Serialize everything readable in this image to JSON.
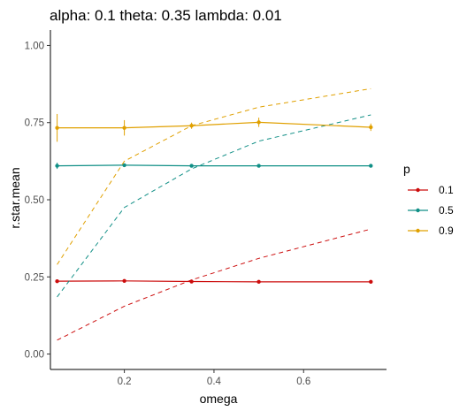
{
  "chart_data": {
    "type": "line",
    "title": "alpha: 0.1 theta: 0.35 lambda: 0.01",
    "xlabel": "omega",
    "ylabel": "r.star.mean",
    "xlim": [
      0.035,
      0.785
    ],
    "ylim": [
      -0.05,
      1.05
    ],
    "x_ticks": [
      0.2,
      0.4,
      0.6
    ],
    "x_tick_labels": [
      "0.2",
      "0.4",
      "0.6"
    ],
    "y_ticks": [
      0.0,
      0.25,
      0.5,
      0.75,
      1.0
    ],
    "y_tick_labels": [
      "0.00",
      "0.25",
      "0.50",
      "0.75",
      "1.00"
    ],
    "grid": false,
    "legend": {
      "title": "p",
      "placement": "right"
    },
    "series": [
      {
        "name": "0.1",
        "color": "#cc0c0c",
        "x": [
          0.05,
          0.2,
          0.35,
          0.5,
          0.75
        ],
        "values": [
          0.236,
          0.237,
          0.235,
          0.234,
          0.234
        ],
        "error": [
          0.003,
          0.003,
          0.003,
          0.003,
          0.003
        ],
        "reference": {
          "x": [
            0.05,
            0.2,
            0.35,
            0.5,
            0.75
          ],
          "values": [
            0.045,
            0.155,
            0.24,
            0.31,
            0.405
          ]
        }
      },
      {
        "name": "0.5",
        "color": "#108f86",
        "x": [
          0.05,
          0.2,
          0.35,
          0.5,
          0.75
        ],
        "values": [
          0.61,
          0.612,
          0.61,
          0.61,
          0.61
        ],
        "error": [
          0.01,
          0.004,
          0.003,
          0.003,
          0.003
        ],
        "reference": {
          "x": [
            0.05,
            0.2,
            0.35,
            0.5,
            0.75
          ],
          "values": [
            0.185,
            0.475,
            0.6,
            0.69,
            0.775
          ]
        }
      },
      {
        "name": "0.9",
        "color": "#e0a000",
        "x": [
          0.05,
          0.2,
          0.35,
          0.5,
          0.75
        ],
        "values": [
          0.733,
          0.733,
          0.74,
          0.751,
          0.735
        ],
        "error": [
          0.045,
          0.025,
          0.01,
          0.015,
          0.012
        ],
        "reference": {
          "x": [
            0.05,
            0.2,
            0.35,
            0.5,
            0.75
          ],
          "values": [
            0.29,
            0.625,
            0.74,
            0.8,
            0.86
          ]
        }
      }
    ]
  }
}
